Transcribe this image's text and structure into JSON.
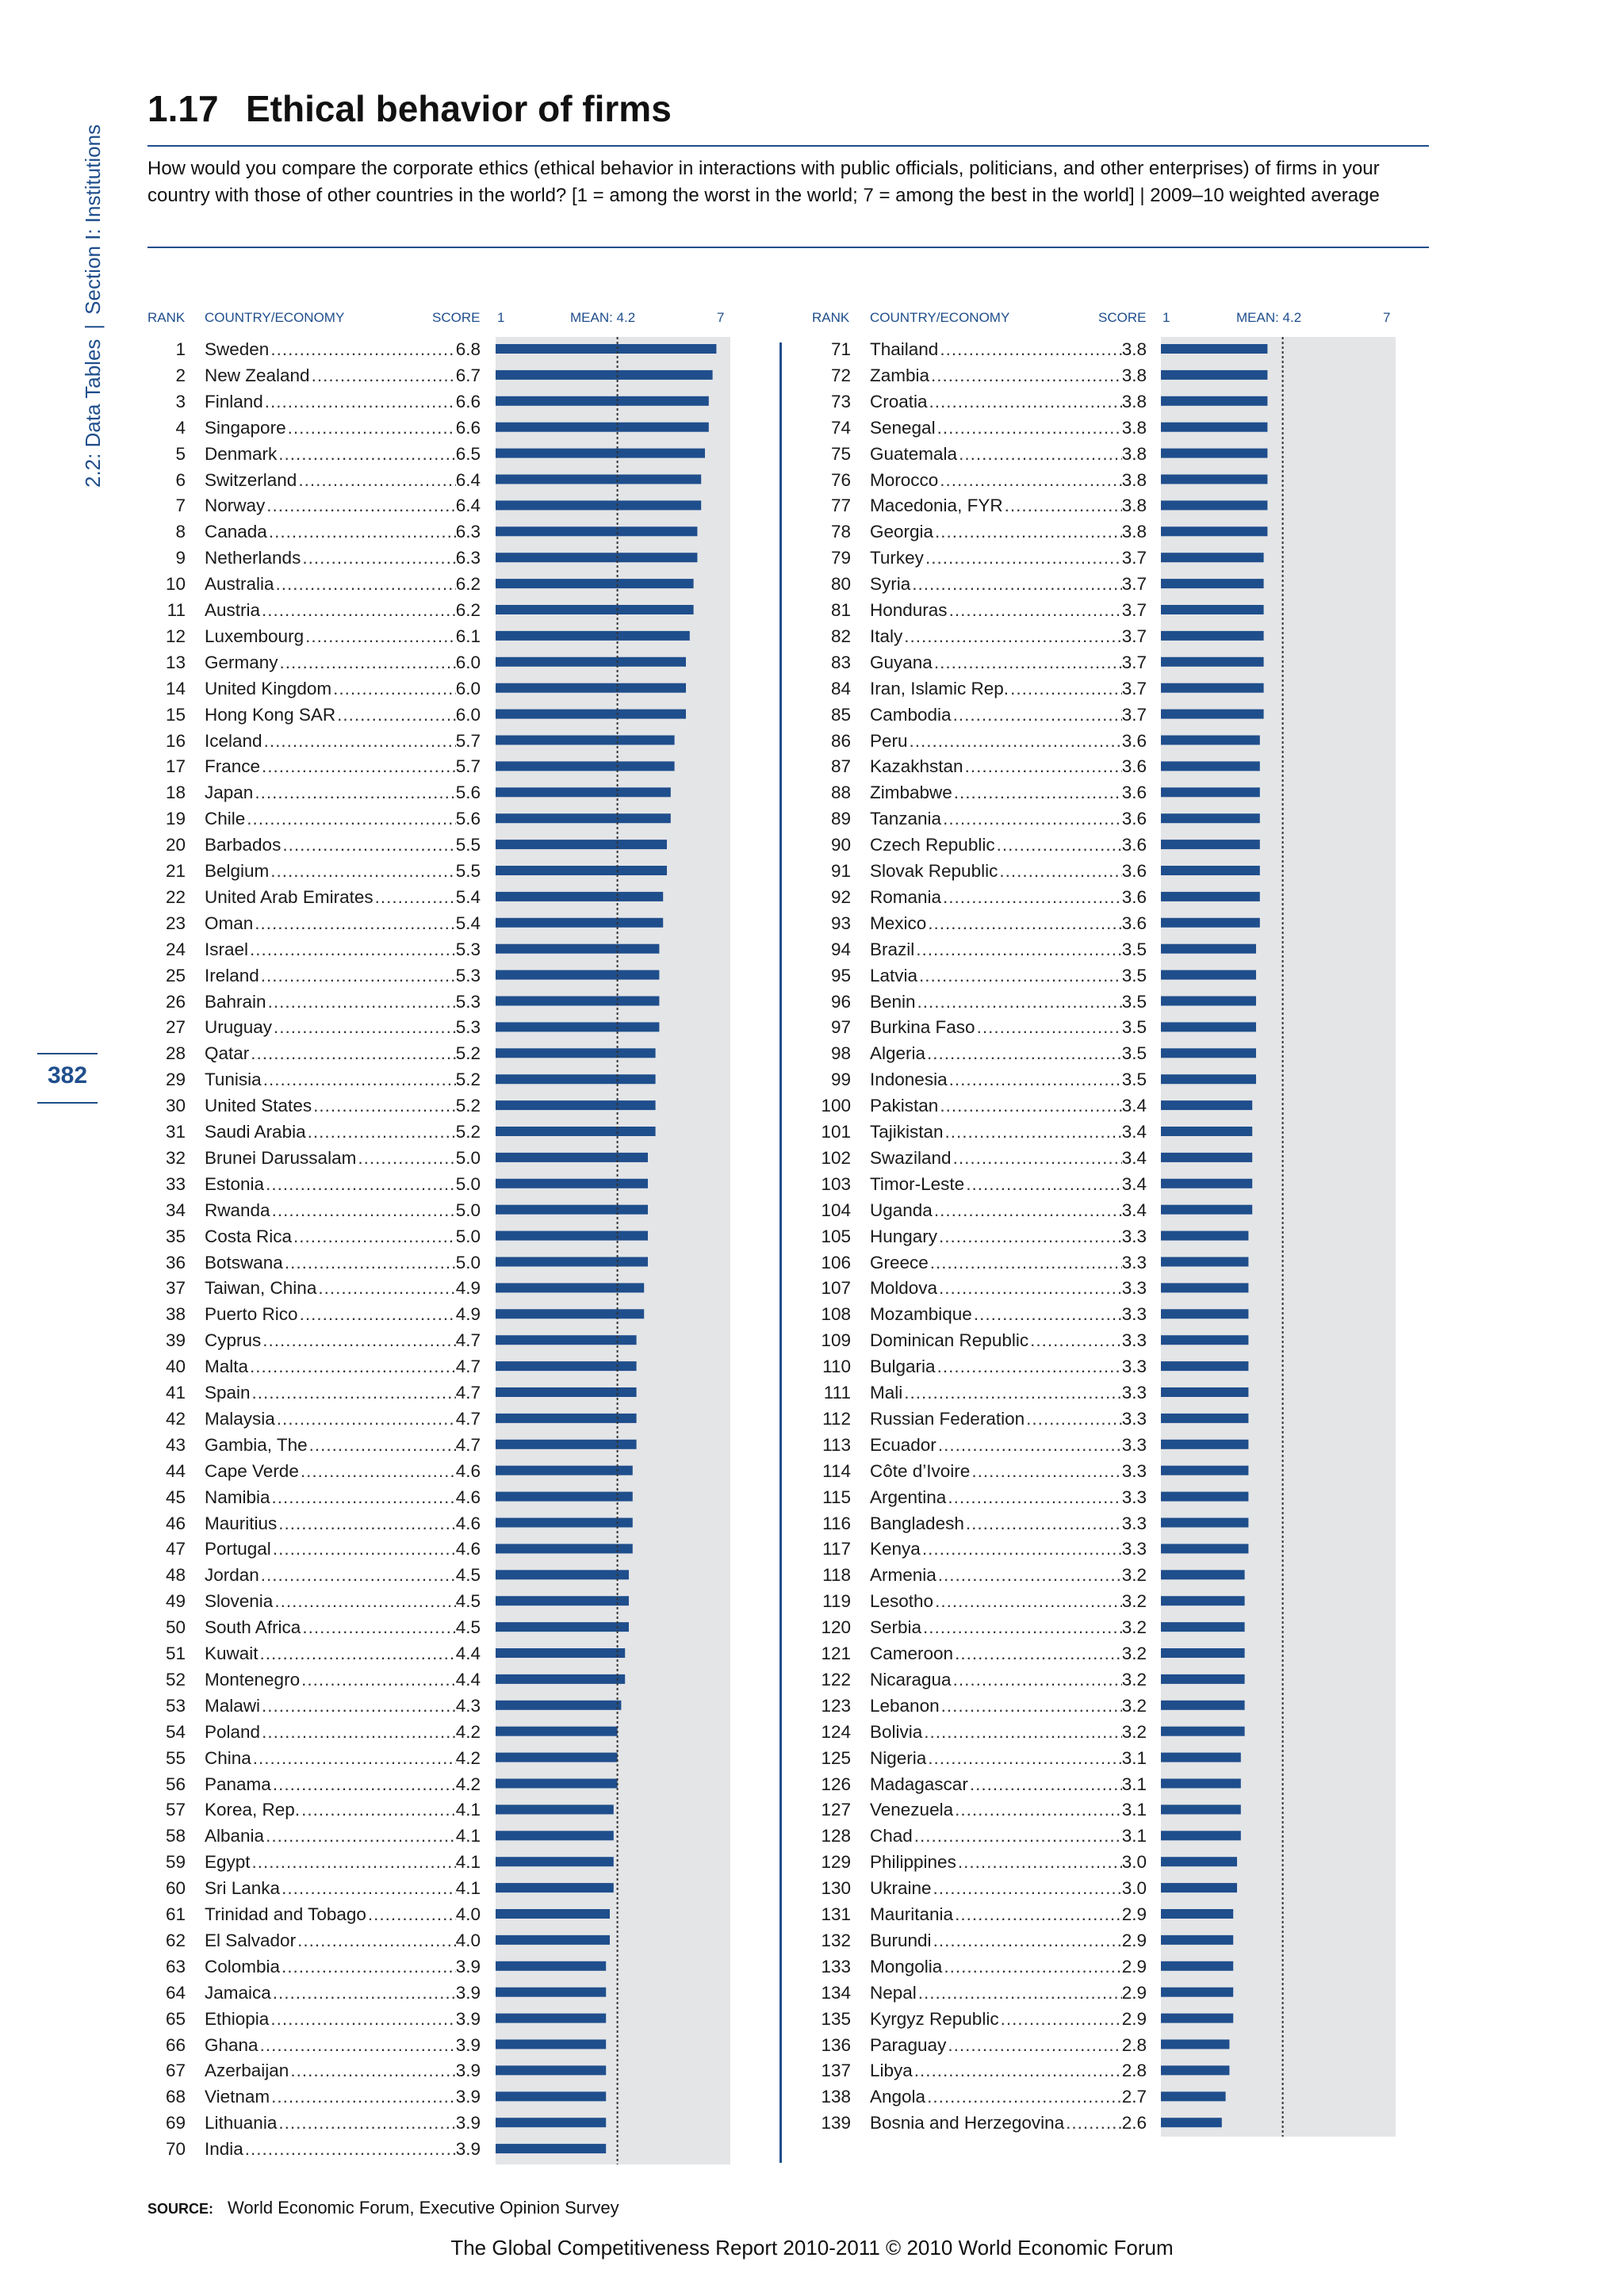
{
  "side_label": {
    "part1": "2.2: Data Tables",
    "sep": "|",
    "part2": "Section I: Institutions"
  },
  "page_number": "382",
  "title": {
    "number": "1.17",
    "text": "Ethical behavior of firms"
  },
  "question": "How would you compare the corporate ethics (ethical behavior in interactions with public officials, politicians, and other enterprises) of firms in your country with those of other countries in the world? [1 = among the worst in the world; 7 = among the best in the world]  |  2009–10 weighted average",
  "headers": {
    "rank": "RANK",
    "country": "COUNTRY/ECONOMY",
    "score": "SCORE",
    "axis_min": "1",
    "mean": "MEAN: 4.2",
    "axis_max": "7"
  },
  "source": {
    "label": "SOURCE:",
    "text": "World Economic Forum, Executive Opinion Survey"
  },
  "footer": "The Global Competitiveness Report 2010-2011 © 2010 World Economic Forum",
  "colors": {
    "bar": "#1f4e8c",
    "track": "#e4e5e7",
    "accent": "#1f4e8c"
  },
  "chart_data": {
    "type": "bar",
    "orientation": "horizontal",
    "xlim": [
      1,
      7
    ],
    "mean": 4.2,
    "ranks": [
      1,
      2,
      3,
      4,
      5,
      6,
      7,
      8,
      9,
      10,
      11,
      12,
      13,
      14,
      15,
      16,
      17,
      18,
      19,
      20,
      21,
      22,
      23,
      24,
      25,
      26,
      27,
      28,
      29,
      30,
      31,
      32,
      33,
      34,
      35,
      36,
      37,
      38,
      39,
      40,
      41,
      42,
      43,
      44,
      45,
      46,
      47,
      48,
      49,
      50,
      51,
      52,
      53,
      54,
      55,
      56,
      57,
      58,
      59,
      60,
      61,
      62,
      63,
      64,
      65,
      66,
      67,
      68,
      69,
      70,
      71,
      72,
      73,
      74,
      75,
      76,
      77,
      78,
      79,
      80,
      81,
      82,
      83,
      84,
      85,
      86,
      87,
      88,
      89,
      90,
      91,
      92,
      93,
      94,
      95,
      96,
      97,
      98,
      99,
      100,
      101,
      102,
      103,
      104,
      105,
      106,
      107,
      108,
      109,
      110,
      111,
      112,
      113,
      114,
      115,
      116,
      117,
      118,
      119,
      120,
      121,
      122,
      123,
      124,
      125,
      126,
      127,
      128,
      129,
      130,
      131,
      132,
      133,
      134,
      135,
      136,
      137,
      138,
      139
    ],
    "categories": [
      "Sweden",
      "New Zealand",
      "Finland",
      "Singapore",
      "Denmark",
      "Switzerland",
      "Norway",
      "Canada",
      "Netherlands",
      "Australia",
      "Austria",
      "Luxembourg",
      "Germany",
      "United Kingdom",
      "Hong Kong SAR",
      "Iceland",
      "France",
      "Japan",
      "Chile",
      "Barbados",
      "Belgium",
      "United Arab Emirates",
      "Oman",
      "Israel",
      "Ireland",
      "Bahrain",
      "Uruguay",
      "Qatar",
      "Tunisia",
      "United States",
      "Saudi Arabia",
      "Brunei Darussalam",
      "Estonia",
      "Rwanda",
      "Costa Rica",
      "Botswana",
      "Taiwan, China",
      "Puerto Rico",
      "Cyprus",
      "Malta",
      "Spain",
      "Malaysia",
      "Gambia, The",
      "Cape Verde",
      "Namibia",
      "Mauritius",
      "Portugal",
      "Jordan",
      "Slovenia",
      "South Africa",
      "Kuwait",
      "Montenegro",
      "Malawi",
      "Poland",
      "China",
      "Panama",
      "Korea, Rep.",
      "Albania",
      "Egypt",
      "Sri Lanka",
      "Trinidad and Tobago",
      "El Salvador",
      "Colombia",
      "Jamaica",
      "Ethiopia",
      "Ghana",
      "Azerbaijan",
      "Vietnam",
      "Lithuania",
      "India",
      "Thailand",
      "Zambia",
      "Croatia",
      "Senegal",
      "Guatemala",
      "Morocco",
      "Macedonia, FYR",
      "Georgia",
      "Turkey",
      "Syria",
      "Honduras",
      "Italy",
      "Guyana",
      "Iran, Islamic Rep.",
      "Cambodia",
      "Peru",
      "Kazakhstan",
      "Zimbabwe",
      "Tanzania",
      "Czech Republic",
      "Slovak Republic",
      "Romania",
      "Mexico",
      "Brazil",
      "Latvia",
      "Benin",
      "Burkina Faso",
      "Algeria",
      "Indonesia",
      "Pakistan",
      "Tajikistan",
      "Swaziland",
      "Timor-Leste",
      "Uganda",
      "Hungary",
      "Greece",
      "Moldova",
      "Mozambique",
      "Dominican Republic",
      "Bulgaria",
      "Mali",
      "Russian Federation",
      "Ecuador",
      "Côte d’Ivoire",
      "Argentina",
      "Bangladesh",
      "Kenya",
      "Armenia",
      "Lesotho",
      "Serbia",
      "Cameroon",
      "Nicaragua",
      "Lebanon",
      "Bolivia",
      "Nigeria",
      "Madagascar",
      "Venezuela",
      "Chad",
      "Philippines",
      "Ukraine",
      "Mauritania",
      "Burundi",
      "Mongolia",
      "Nepal",
      "Kyrgyz Republic",
      "Paraguay",
      "Libya",
      "Angola",
      "Bosnia and Herzegovina"
    ],
    "scores": [
      "6.8",
      "6.7",
      "6.6",
      "6.6",
      "6.5",
      "6.4",
      "6.4",
      "6.3",
      "6.3",
      "6.2",
      "6.2",
      "6.1",
      "6.0",
      "6.0",
      "6.0",
      "5.7",
      "5.7",
      "5.6",
      "5.6",
      "5.5",
      "5.5",
      "5.4",
      "5.4",
      "5.3",
      "5.3",
      "5.3",
      "5.3",
      "5.2",
      "5.2",
      "5.2",
      "5.2",
      "5.0",
      "5.0",
      "5.0",
      "5.0",
      "5.0",
      "4.9",
      "4.9",
      "4.7",
      "4.7",
      "4.7",
      "4.7",
      "4.7",
      "4.6",
      "4.6",
      "4.6",
      "4.6",
      "4.5",
      "4.5",
      "4.5",
      "4.4",
      "4.4",
      "4.3",
      "4.2",
      "4.2",
      "4.2",
      "4.1",
      "4.1",
      "4.1",
      "4.1",
      "4.0",
      "4.0",
      "3.9",
      "3.9",
      "3.9",
      "3.9",
      "3.9",
      "3.9",
      "3.9",
      "3.9",
      "3.8",
      "3.8",
      "3.8",
      "3.8",
      "3.8",
      "3.8",
      "3.8",
      "3.8",
      "3.7",
      "3.7",
      "3.7",
      "3.7",
      "3.7",
      "3.7",
      "3.7",
      "3.6",
      "3.6",
      "3.6",
      "3.6",
      "3.6",
      "3.6",
      "3.6",
      "3.6",
      "3.5",
      "3.5",
      "3.5",
      "3.5",
      "3.5",
      "3.5",
      "3.4",
      "3.4",
      "3.4",
      "3.4",
      "3.4",
      "3.3",
      "3.3",
      "3.3",
      "3.3",
      "3.3",
      "3.3",
      "3.3",
      "3.3",
      "3.3",
      "3.3",
      "3.3",
      "3.3",
      "3.3",
      "3.2",
      "3.2",
      "3.2",
      "3.2",
      "3.2",
      "3.2",
      "3.2",
      "3.1",
      "3.1",
      "3.1",
      "3.1",
      "3.0",
      "3.0",
      "2.9",
      "2.9",
      "2.9",
      "2.9",
      "2.9",
      "2.8",
      "2.8",
      "2.7",
      "2.6"
    ]
  }
}
